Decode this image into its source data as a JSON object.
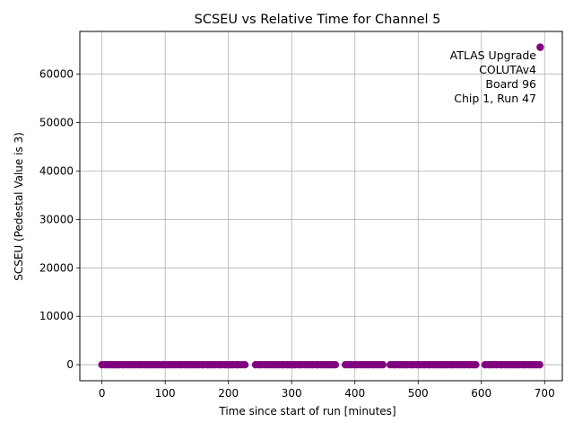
{
  "chart_data": {
    "type": "scatter",
    "title": "SCSEU vs Relative Time for Channel 5",
    "xlabel": "Time since start of run [minutes]",
    "ylabel": "SCSEU (Pedestal Value is 3)",
    "xlim": [
      -35,
      728
    ],
    "ylim": [
      -3300,
      68800
    ],
    "xticks": [
      0,
      100,
      200,
      300,
      400,
      500,
      600,
      700
    ],
    "yticks": [
      0,
      10000,
      20000,
      30000,
      40000,
      50000,
      60000
    ],
    "grid": true,
    "marker_color": "#800080",
    "annotation": [
      "ATLAS Upgrade",
      "COLUTAv4",
      "Board 96",
      "Chip 1, Run 47"
    ],
    "annotation_position": "top-right",
    "series": [
      {
        "x": [
          0,
          5,
          10,
          14,
          18,
          23,
          27,
          32,
          36,
          41,
          45,
          50,
          54,
          59,
          63,
          68,
          72,
          77,
          81,
          86,
          90,
          95,
          99,
          104,
          108,
          113,
          117,
          122,
          126,
          131,
          135,
          140,
          144,
          149,
          153,
          158,
          162,
          167,
          171,
          176,
          180,
          185,
          189,
          194,
          198,
          203,
          207,
          212,
          216,
          221,
          226,
          243,
          248,
          252,
          257,
          261,
          266,
          270,
          275,
          279,
          284,
          288,
          293,
          297,
          302,
          306,
          311,
          315,
          320,
          324,
          329,
          333,
          338,
          342,
          347,
          351,
          356,
          360,
          365,
          369,
          385,
          390,
          394,
          399,
          403,
          408,
          412,
          417,
          421,
          426,
          430,
          435,
          439,
          444,
          456,
          461,
          465,
          470,
          474,
          479,
          483,
          488,
          492,
          497,
          501,
          506,
          510,
          515,
          519,
          524,
          528,
          533,
          537,
          542,
          546,
          551,
          555,
          560,
          564,
          569,
          573,
          578,
          582,
          587,
          591,
          606,
          611,
          615,
          620,
          624,
          629,
          633,
          638,
          642,
          647,
          651,
          656,
          660,
          665,
          669,
          674,
          678,
          683,
          687,
          692
        ],
        "y": [
          0,
          0,
          0,
          0,
          0,
          0,
          0,
          0,
          0,
          0,
          0,
          0,
          0,
          0,
          0,
          0,
          0,
          0,
          0,
          0,
          0,
          0,
          0,
          0,
          0,
          0,
          0,
          0,
          0,
          0,
          0,
          0,
          0,
          0,
          0,
          0,
          0,
          0,
          0,
          0,
          0,
          0,
          0,
          0,
          0,
          0,
          0,
          0,
          0,
          0,
          0,
          0,
          0,
          0,
          0,
          0,
          0,
          0,
          0,
          0,
          0,
          0,
          0,
          0,
          0,
          0,
          0,
          0,
          0,
          0,
          0,
          0,
          0,
          0,
          0,
          0,
          0,
          0,
          0,
          0,
          0,
          0,
          0,
          0,
          0,
          0,
          0,
          0,
          0,
          0,
          0,
          0,
          0,
          0,
          0,
          0,
          0,
          0,
          0,
          0,
          0,
          0,
          0,
          0,
          0,
          0,
          0,
          0,
          0,
          0,
          0,
          0,
          0,
          0,
          0,
          0,
          0,
          0,
          0,
          0,
          0,
          0,
          0,
          0,
          0,
          0,
          0,
          0,
          0,
          0,
          0,
          0,
          0,
          0,
          0,
          0,
          0,
          0,
          0,
          0,
          0,
          0,
          0,
          0,
          0
        ]
      },
      {
        "x": [
          693
        ],
        "y": [
          65535
        ]
      }
    ]
  }
}
